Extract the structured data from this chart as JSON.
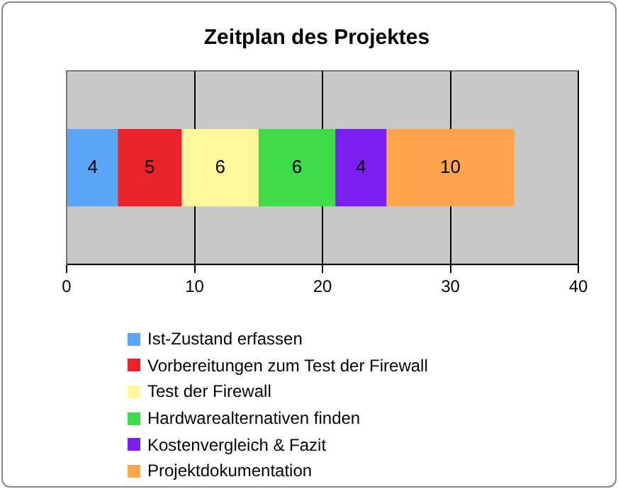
{
  "chart_data": {
    "type": "bar",
    "title": "Zeitplan des Projektes",
    "orientation": "horizontal",
    "stacked": true,
    "categories": [
      null
    ],
    "series": [
      {
        "name": "Ist-Zustand erfassen",
        "color": "#5aa5f5",
        "values": [
          4
        ]
      },
      {
        "name": "Vorbereitungen zum Test der Firewall",
        "color": "#e8232a",
        "values": [
          5
        ]
      },
      {
        "name": "Test der Firewall",
        "color": "#fff79a",
        "values": [
          6
        ]
      },
      {
        "name": "Hardwarealternativen finden",
        "color": "#3fdc4a",
        "values": [
          6
        ]
      },
      {
        "name": "Kostenvergleich & Fazit",
        "color": "#7a1ff0",
        "values": [
          4
        ]
      },
      {
        "name": "Projektdokumentation",
        "color": "#ffa54c",
        "values": [
          10
        ]
      }
    ],
    "xlim": [
      0,
      40
    ],
    "xticks": [
      0,
      10,
      20,
      30,
      40
    ],
    "grid": "x",
    "legend": "bottom",
    "data_labels": true
  }
}
